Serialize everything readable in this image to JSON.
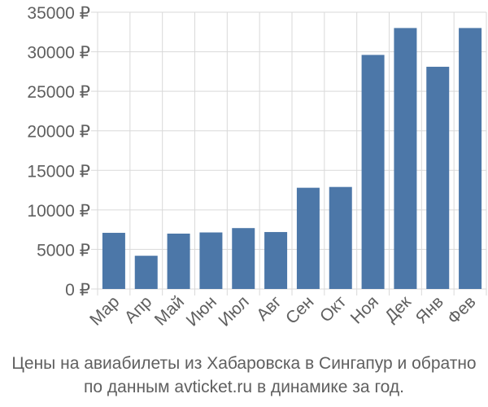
{
  "chart_data": {
    "type": "bar",
    "categories": [
      "Мар",
      "Апр",
      "Май",
      "Июн",
      "Июл",
      "Авг",
      "Сен",
      "Окт",
      "Ноя",
      "Дек",
      "Янв",
      "Фев"
    ],
    "values": [
      7100,
      4200,
      7000,
      7150,
      7700,
      7200,
      12800,
      12900,
      29600,
      33000,
      28100,
      33000
    ],
    "y_tick_labels": [
      "0 ₽",
      "5000 ₽",
      "10000 ₽",
      "15000 ₽",
      "20000 ₽",
      "25000 ₽",
      "30000 ₽",
      "35000 ₽"
    ],
    "y_ticks": [
      0,
      5000,
      10000,
      15000,
      20000,
      25000,
      30000,
      35000
    ],
    "ylim": [
      0,
      35000
    ],
    "grid": true,
    "bar_color": "#4c77a8",
    "grid_color": "#d9d9d9",
    "caption_line1": "Цены на авиабилеты из Хабаровска в Сингапур и обратно",
    "caption_line2": "по данным avticket.ru в динамике за год."
  }
}
